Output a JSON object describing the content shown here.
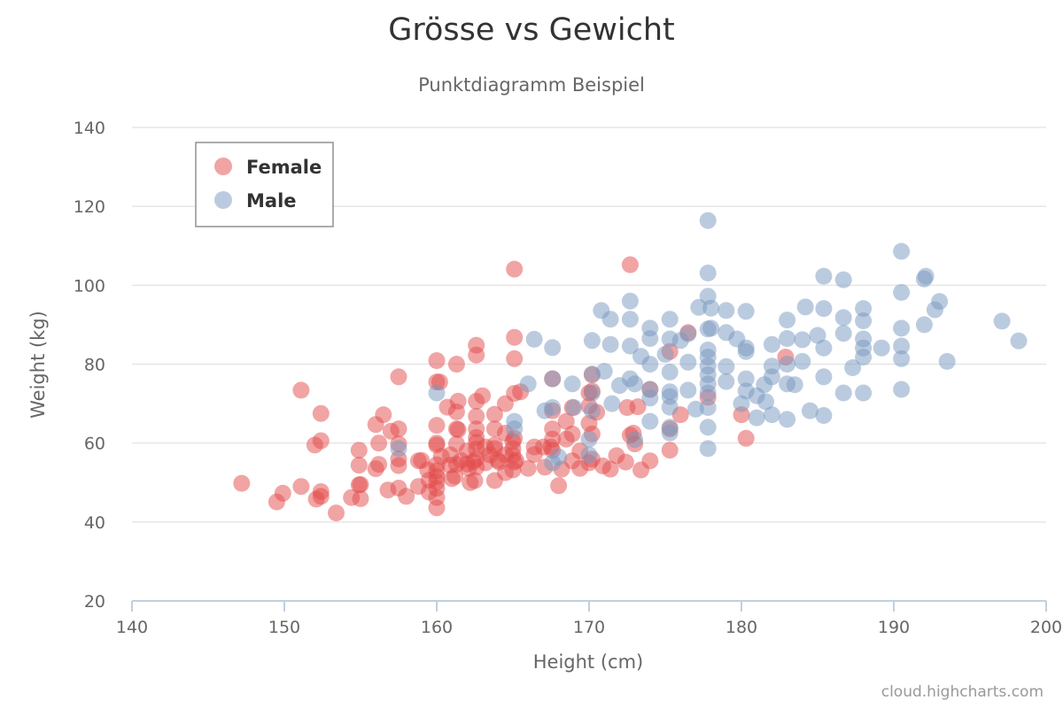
{
  "chart_data": {
    "type": "scatter",
    "title": "Grösse vs Gewicht",
    "subtitle": "Punktdiagramm Beispiel",
    "xlabel": "Height (cm)",
    "ylabel": "Weight (kg)",
    "xlim": [
      140,
      200
    ],
    "ylim": [
      20,
      140
    ],
    "xticks": [
      140,
      150,
      160,
      170,
      180,
      190,
      200
    ],
    "yticks": [
      20,
      40,
      60,
      80,
      100,
      120,
      140
    ],
    "grid": "horizontal",
    "legend_position": "top-left",
    "series": [
      {
        "name": "Female",
        "color": "#e34a4a",
        "points": [
          [
            147.2,
            49.8
          ],
          [
            149.5,
            45.1
          ],
          [
            149.9,
            47.3
          ],
          [
            151.1,
            49.0
          ],
          [
            151.1,
            73.4
          ],
          [
            152.0,
            59.5
          ],
          [
            152.1,
            45.8
          ],
          [
            152.4,
            46.5
          ],
          [
            152.4,
            47.7
          ],
          [
            152.4,
            60.6
          ],
          [
            152.4,
            67.5
          ],
          [
            153.4,
            42.3
          ],
          [
            154.4,
            46.2
          ],
          [
            154.9,
            49.4
          ],
          [
            154.9,
            54.4
          ],
          [
            154.9,
            58.2
          ],
          [
            155.0,
            45.9
          ],
          [
            155.0,
            49.5
          ],
          [
            156.0,
            53.5
          ],
          [
            156.2,
            60.0
          ],
          [
            156.2,
            54.6
          ],
          [
            156.0,
            64.7
          ],
          [
            156.5,
            67.2
          ],
          [
            156.8,
            48.1
          ],
          [
            157.0,
            63.0
          ],
          [
            157.5,
            54.3
          ],
          [
            157.5,
            56.0
          ],
          [
            157.5,
            59.8
          ],
          [
            157.5,
            63.6
          ],
          [
            157.5,
            76.8
          ],
          [
            157.5,
            48.6
          ],
          [
            158.0,
            46.5
          ],
          [
            158.8,
            49.0
          ],
          [
            158.8,
            55.5
          ],
          [
            159.0,
            55.6
          ],
          [
            159.4,
            53.2
          ],
          [
            159.5,
            47.6
          ],
          [
            159.5,
            50.6
          ],
          [
            160.0,
            48.5
          ],
          [
            160.0,
            50.2
          ],
          [
            160.0,
            53.0
          ],
          [
            160.0,
            54.5
          ],
          [
            160.0,
            59.5
          ],
          [
            160.0,
            64.5
          ],
          [
            160.0,
            75.5
          ],
          [
            160.0,
            43.6
          ],
          [
            160.0,
            46.2
          ],
          [
            160.0,
            51.5
          ],
          [
            160.0,
            60.0
          ],
          [
            160.0,
            80.9
          ],
          [
            160.2,
            75.5
          ],
          [
            160.3,
            56.6
          ],
          [
            160.7,
            69.1
          ],
          [
            160.9,
            54.4
          ],
          [
            160.9,
            57.0
          ],
          [
            161.0,
            51.0
          ],
          [
            161.2,
            51.6
          ],
          [
            161.3,
            80.0
          ],
          [
            161.3,
            67.9
          ],
          [
            161.3,
            59.8
          ],
          [
            161.3,
            63.6
          ],
          [
            161.3,
            54.6
          ],
          [
            161.4,
            63.4
          ],
          [
            161.4,
            70.6
          ],
          [
            161.6,
            55.6
          ],
          [
            162.0,
            54.7
          ],
          [
            162.0,
            58.0
          ],
          [
            162.1,
            53.6
          ],
          [
            162.2,
            50.0
          ],
          [
            162.4,
            55.3
          ],
          [
            162.5,
            50.5
          ],
          [
            162.6,
            58.5
          ],
          [
            162.6,
            63.6
          ],
          [
            162.6,
            70.6
          ],
          [
            162.6,
            84.8
          ],
          [
            162.6,
            53.9
          ],
          [
            162.6,
            56.0
          ],
          [
            162.6,
            60.2
          ],
          [
            162.6,
            66.8
          ],
          [
            162.6,
            82.3
          ],
          [
            162.6,
            61.4
          ],
          [
            163.0,
            72.0
          ],
          [
            163.2,
            59.0
          ],
          [
            163.2,
            55.0
          ],
          [
            163.5,
            57.0
          ],
          [
            163.8,
            50.5
          ],
          [
            163.8,
            58.6
          ],
          [
            163.8,
            59.5
          ],
          [
            163.8,
            63.6
          ],
          [
            163.8,
            67.3
          ],
          [
            164.0,
            55.7
          ],
          [
            164.1,
            55.2
          ],
          [
            164.5,
            52.5
          ],
          [
            164.5,
            57.0
          ],
          [
            164.5,
            62.5
          ],
          [
            164.5,
            70.0
          ],
          [
            165.0,
            53.2
          ],
          [
            165.0,
            57.0
          ],
          [
            165.0,
            58.6
          ],
          [
            165.0,
            60.4
          ],
          [
            165.1,
            81.4
          ],
          [
            165.1,
            86.8
          ],
          [
            165.1,
            104.1
          ],
          [
            165.1,
            72.6
          ],
          [
            165.1,
            55.2
          ],
          [
            165.1,
            61.2
          ],
          [
            165.2,
            55.6
          ],
          [
            165.5,
            73.0
          ],
          [
            166.0,
            53.6
          ],
          [
            166.4,
            57.1
          ],
          [
            166.4,
            59.0
          ],
          [
            167.0,
            59.0
          ],
          [
            167.1,
            53.9
          ],
          [
            167.5,
            59.0
          ],
          [
            167.6,
            61.0
          ],
          [
            167.6,
            63.6
          ],
          [
            167.6,
            76.3
          ],
          [
            167.6,
            58.2
          ],
          [
            167.6,
            68.2
          ],
          [
            168.0,
            49.2
          ],
          [
            168.2,
            53.4
          ],
          [
            168.5,
            61.0
          ],
          [
            168.5,
            65.5
          ],
          [
            168.9,
            55.5
          ],
          [
            168.9,
            62.3
          ],
          [
            168.9,
            69.0
          ],
          [
            169.4,
            53.6
          ],
          [
            169.4,
            58.0
          ],
          [
            170.0,
            55.0
          ],
          [
            170.0,
            65.0
          ],
          [
            170.0,
            69.4
          ],
          [
            170.0,
            72.7
          ],
          [
            170.2,
            55.9
          ],
          [
            170.2,
            62.3
          ],
          [
            170.2,
            73.2
          ],
          [
            170.2,
            77.3
          ],
          [
            170.5,
            67.8
          ],
          [
            170.9,
            54.2
          ],
          [
            171.4,
            53.4
          ],
          [
            171.8,
            56.8
          ],
          [
            172.4,
            55.2
          ],
          [
            172.5,
            69.0
          ],
          [
            172.7,
            62.0
          ],
          [
            172.7,
            105.2
          ],
          [
            172.9,
            62.5
          ],
          [
            173.0,
            59.8
          ],
          [
            173.2,
            69.2
          ],
          [
            173.4,
            53.2
          ],
          [
            174.0,
            55.5
          ],
          [
            174.0,
            73.6
          ],
          [
            175.3,
            63.6
          ],
          [
            175.3,
            58.2
          ],
          [
            175.3,
            83.2
          ],
          [
            176.0,
            67.2
          ],
          [
            176.5,
            88.0
          ],
          [
            177.8,
            71.6
          ],
          [
            180.0,
            67.2
          ],
          [
            180.3,
            61.2
          ],
          [
            182.9,
            81.8
          ]
        ]
      },
      {
        "name": "Male",
        "color": "#7798bf",
        "points": [
          [
            157.5,
            58.6
          ],
          [
            160.0,
            72.7
          ],
          [
            165.1,
            65.5
          ],
          [
            165.1,
            63.6
          ],
          [
            166.0,
            75.0
          ],
          [
            166.4,
            86.3
          ],
          [
            167.1,
            68.2
          ],
          [
            167.6,
            84.2
          ],
          [
            167.6,
            76.3
          ],
          [
            167.6,
            55.0
          ],
          [
            167.6,
            69.0
          ],
          [
            168.0,
            56.5
          ],
          [
            168.9,
            75.0
          ],
          [
            169.0,
            69.0
          ],
          [
            170.0,
            57.0
          ],
          [
            170.0,
            61.0
          ],
          [
            170.2,
            86.0
          ],
          [
            170.2,
            77.5
          ],
          [
            170.2,
            72.7
          ],
          [
            170.2,
            68.2
          ],
          [
            170.8,
            93.6
          ],
          [
            171.0,
            78.2
          ],
          [
            171.4,
            85.0
          ],
          [
            171.4,
            91.4
          ],
          [
            171.5,
            70.0
          ],
          [
            172.0,
            74.6
          ],
          [
            172.7,
            76.3
          ],
          [
            172.7,
            84.6
          ],
          [
            172.7,
            96.0
          ],
          [
            172.7,
            91.4
          ],
          [
            173.0,
            60.9
          ],
          [
            173.0,
            75.0
          ],
          [
            173.4,
            82.0
          ],
          [
            174.0,
            86.5
          ],
          [
            174.0,
            89.1
          ],
          [
            174.0,
            80.0
          ],
          [
            174.0,
            65.5
          ],
          [
            174.0,
            73.6
          ],
          [
            174.0,
            71.4
          ],
          [
            175.0,
            82.5
          ],
          [
            175.3,
            91.4
          ],
          [
            175.3,
            86.4
          ],
          [
            175.3,
            69.1
          ],
          [
            175.3,
            64.0
          ],
          [
            175.3,
            71.8
          ],
          [
            175.3,
            62.6
          ],
          [
            175.3,
            73.0
          ],
          [
            175.3,
            78.0
          ],
          [
            176.0,
            86.0
          ],
          [
            176.5,
            73.4
          ],
          [
            176.5,
            80.5
          ],
          [
            176.5,
            87.7
          ],
          [
            177.0,
            68.6
          ],
          [
            177.2,
            94.4
          ],
          [
            177.8,
            116.4
          ],
          [
            177.8,
            103.1
          ],
          [
            177.8,
            97.2
          ],
          [
            177.8,
            88.9
          ],
          [
            177.8,
            83.6
          ],
          [
            177.8,
            81.8
          ],
          [
            177.8,
            79.5
          ],
          [
            177.8,
            77.3
          ],
          [
            177.8,
            75.0
          ],
          [
            177.8,
            72.7
          ],
          [
            177.8,
            69.0
          ],
          [
            177.8,
            64.0
          ],
          [
            177.8,
            58.6
          ],
          [
            178.0,
            94.2
          ],
          [
            178.0,
            89.1
          ],
          [
            179.0,
            93.6
          ],
          [
            179.0,
            75.6
          ],
          [
            179.0,
            88.0
          ],
          [
            179.0,
            79.4
          ],
          [
            179.7,
            86.4
          ],
          [
            180.0,
            70.0
          ],
          [
            180.3,
            93.4
          ],
          [
            180.3,
            84.1
          ],
          [
            180.3,
            83.2
          ],
          [
            180.3,
            76.3
          ],
          [
            180.3,
            73.2
          ],
          [
            181.0,
            72.0
          ],
          [
            181.0,
            66.4
          ],
          [
            181.5,
            74.8
          ],
          [
            181.6,
            70.5
          ],
          [
            182.0,
            85.0
          ],
          [
            182.0,
            76.8
          ],
          [
            182.0,
            67.2
          ],
          [
            182.0,
            79.5
          ],
          [
            183.0,
            91.2
          ],
          [
            183.0,
            80.0
          ],
          [
            183.0,
            75.0
          ],
          [
            183.0,
            66.0
          ],
          [
            183.0,
            86.5
          ],
          [
            183.5,
            74.8
          ],
          [
            184.0,
            86.2
          ],
          [
            184.0,
            80.7
          ],
          [
            184.2,
            94.5
          ],
          [
            184.5,
            68.2
          ],
          [
            185.0,
            87.3
          ],
          [
            185.4,
            102.3
          ],
          [
            185.4,
            94.1
          ],
          [
            185.4,
            84.1
          ],
          [
            185.4,
            76.8
          ],
          [
            185.4,
            67.0
          ],
          [
            186.7,
            101.4
          ],
          [
            186.7,
            91.8
          ],
          [
            186.7,
            87.8
          ],
          [
            186.7,
            72.7
          ],
          [
            187.3,
            79.1
          ],
          [
            188.0,
            94.1
          ],
          [
            188.0,
            91.0
          ],
          [
            188.0,
            86.4
          ],
          [
            188.0,
            84.1
          ],
          [
            188.0,
            81.8
          ],
          [
            188.0,
            72.7
          ],
          [
            189.2,
            84.1
          ],
          [
            190.5,
            108.6
          ],
          [
            190.5,
            98.2
          ],
          [
            190.5,
            89.1
          ],
          [
            190.5,
            84.6
          ],
          [
            190.5,
            81.4
          ],
          [
            190.5,
            73.6
          ],
          [
            192.0,
            101.6
          ],
          [
            192.0,
            90.0
          ],
          [
            192.1,
            102.3
          ],
          [
            192.7,
            93.8
          ],
          [
            193.0,
            95.9
          ],
          [
            193.5,
            80.7
          ],
          [
            197.1,
            90.9
          ],
          [
            198.2,
            85.9
          ]
        ]
      }
    ]
  },
  "credits": "cloud.highcharts.com"
}
